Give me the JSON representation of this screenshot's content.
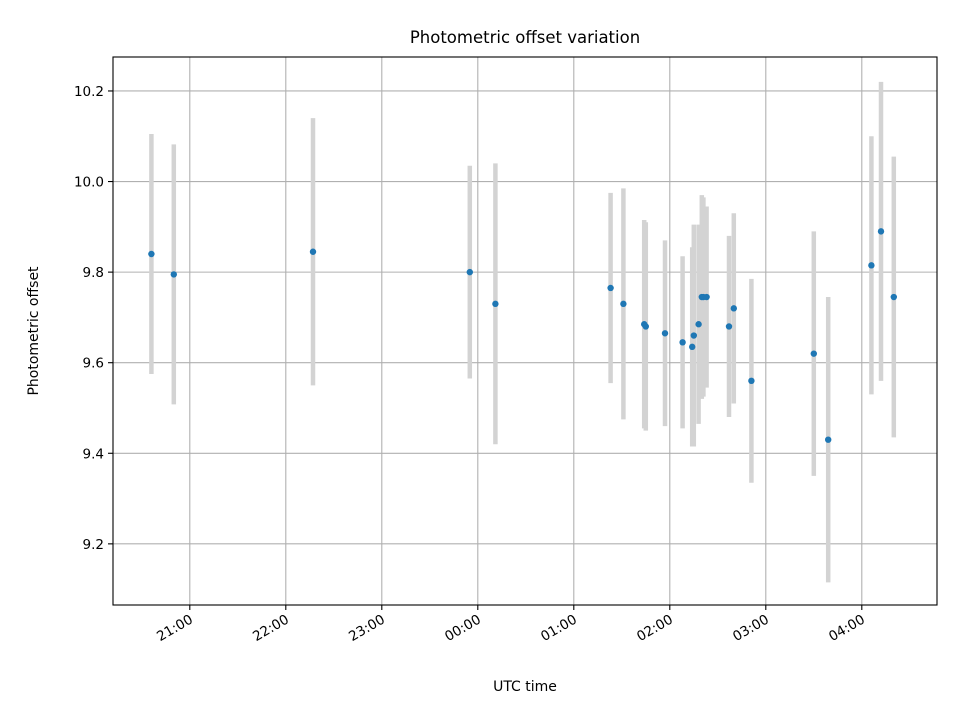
{
  "chart_data": {
    "type": "scatter",
    "title": "Photometric offset variation",
    "xlabel": "UTC time",
    "ylabel": "Photometric offset",
    "x_date": "2024-01-01",
    "x_tick_labels": [
      "21:00",
      "22:00",
      "23:00",
      "00:00",
      "01:00",
      "02:00",
      "03:00",
      "04:00"
    ],
    "y_tick_labels": [
      "9.2",
      "9.4",
      "9.6",
      "9.8",
      "10.0",
      "10.2"
    ],
    "xlim": [
      "2024-01-01T20:12",
      "2024-01-02T04:47"
    ],
    "ylim": [
      9.065,
      10.275
    ],
    "grid": true,
    "colors": {
      "points": "#1f77b4",
      "errorbars": "#d3d3d3",
      "grid": "#b0b0b0"
    },
    "series": [
      {
        "points": [
          {
            "x": "2024-01-01T20:36",
            "y": 9.84,
            "yerr": 0.265
          },
          {
            "x": "2024-01-01T20:50",
            "y": 9.795,
            "yerr": 0.287
          },
          {
            "x": "2024-01-01T22:17",
            "y": 9.845,
            "yerr": 0.295
          },
          {
            "x": "2024-01-01T23:55",
            "y": 9.8,
            "yerr": 0.235
          },
          {
            "x": "2024-01-02T00:11",
            "y": 9.73,
            "yerr": 0.31
          },
          {
            "x": "2024-01-02T01:23",
            "y": 9.765,
            "yerr": 0.21
          },
          {
            "x": "2024-01-02T01:31",
            "y": 9.73,
            "yerr": 0.255
          },
          {
            "x": "2024-01-02T01:44",
            "y": 9.685,
            "yerr": 0.23
          },
          {
            "x": "2024-01-02T01:45",
            "y": 9.68,
            "yerr": 0.23
          },
          {
            "x": "2024-01-02T01:57",
            "y": 9.665,
            "yerr": 0.205
          },
          {
            "x": "2024-01-02T02:08",
            "y": 9.645,
            "yerr": 0.19
          },
          {
            "x": "2024-01-02T02:14",
            "y": 9.635,
            "yerr": 0.22
          },
          {
            "x": "2024-01-02T02:15",
            "y": 9.66,
            "yerr": 0.245
          },
          {
            "x": "2024-01-02T02:18",
            "y": 9.685,
            "yerr": 0.22
          },
          {
            "x": "2024-01-02T02:20",
            "y": 9.745,
            "yerr": 0.225
          },
          {
            "x": "2024-01-02T02:21",
            "y": 9.745,
            "yerr": 0.22
          },
          {
            "x": "2024-01-02T02:23",
            "y": 9.745,
            "yerr": 0.2
          },
          {
            "x": "2024-01-02T02:37",
            "y": 9.68,
            "yerr": 0.2
          },
          {
            "x": "2024-01-02T02:40",
            "y": 9.72,
            "yerr": 0.21
          },
          {
            "x": "2024-01-02T02:51",
            "y": 9.56,
            "yerr": 0.225
          },
          {
            "x": "2024-01-02T03:30",
            "y": 9.62,
            "yerr": 0.27
          },
          {
            "x": "2024-01-02T03:39",
            "y": 9.43,
            "yerr": 0.315
          },
          {
            "x": "2024-01-02T04:06",
            "y": 9.815,
            "yerr": 0.285
          },
          {
            "x": "2024-01-02T04:12",
            "y": 9.89,
            "yerr": 0.33
          },
          {
            "x": "2024-01-02T04:20",
            "y": 9.745,
            "yerr": 0.31
          }
        ]
      }
    ]
  }
}
